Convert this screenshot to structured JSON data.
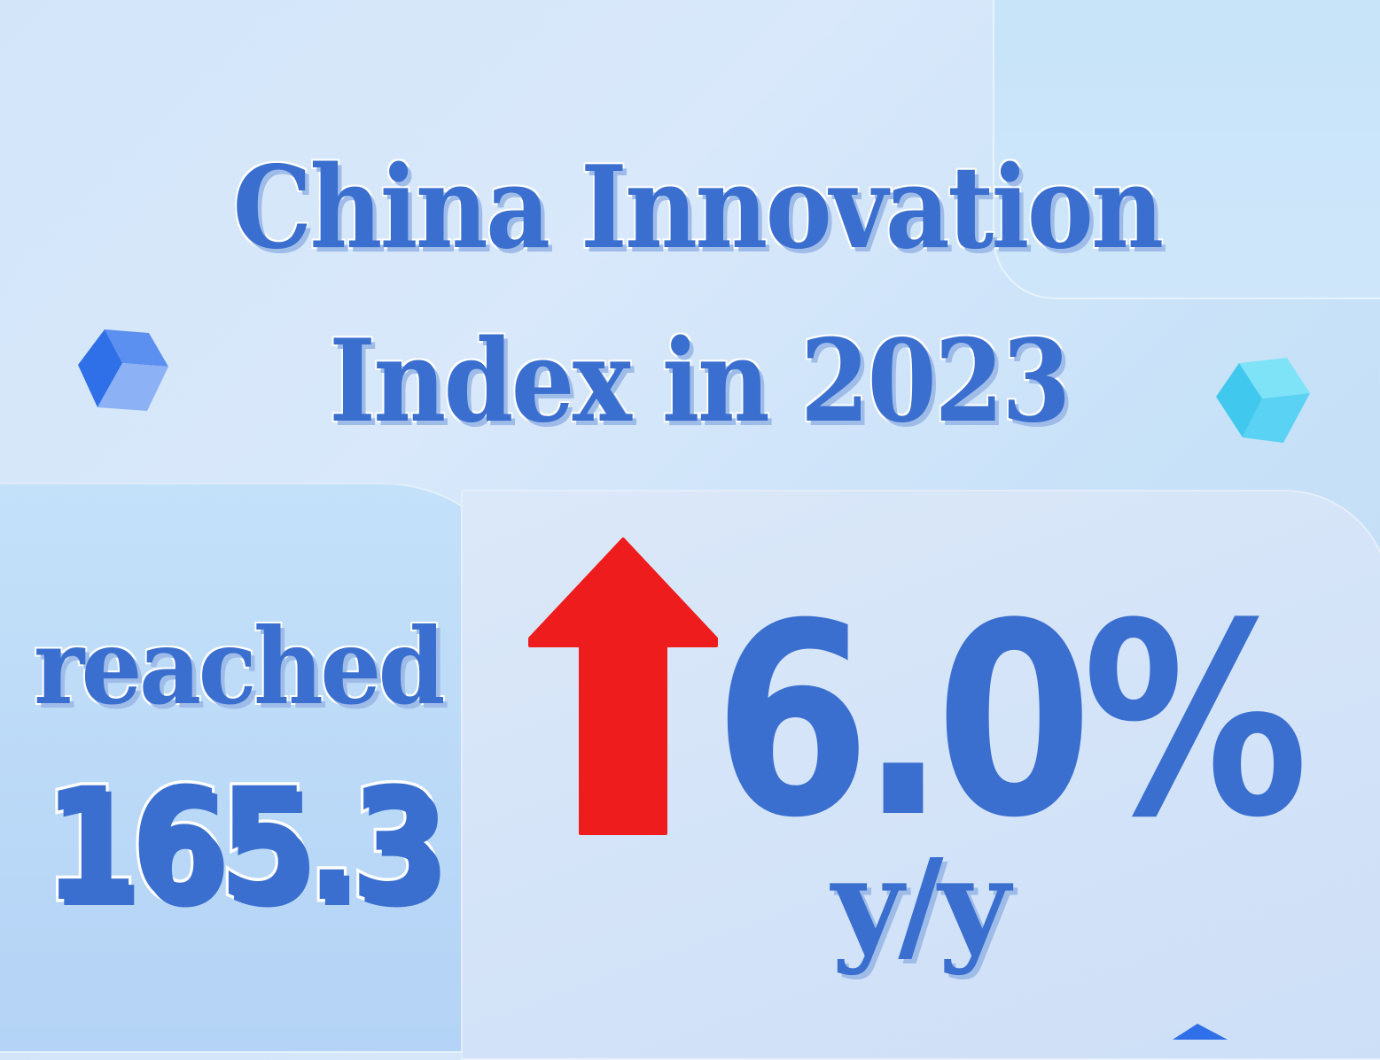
{
  "title": {
    "line1": "China Innovation",
    "line2": "Index in 2023"
  },
  "stat": {
    "label": "reached",
    "value": "165.3"
  },
  "growth": {
    "value": "6.0%",
    "unit": "y/y",
    "direction": "up-arrow-icon"
  },
  "colors": {
    "text": "#3a6fcf",
    "arrow": "#ee1c1c",
    "background": "#d3e6f9"
  }
}
